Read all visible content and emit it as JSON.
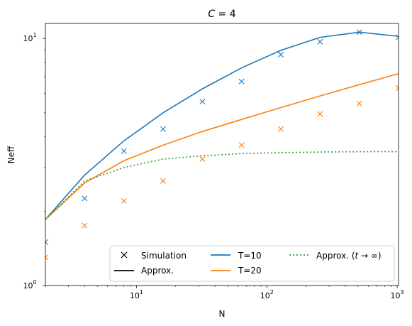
{
  "chart_data": {
    "type": "line",
    "title_main": "C",
    "title_rest": " = 4",
    "xlabel": "N",
    "ylabel": "Neff",
    "xscale": "log",
    "yscale": "log",
    "xlim": [
      2,
      1024
    ],
    "ylim": [
      1,
      11.5
    ],
    "x_ticks": [
      {
        "value": 10,
        "base": "10",
        "exp": "1"
      },
      {
        "value": 100,
        "base": "10",
        "exp": "2"
      },
      {
        "value": 1000,
        "base": "10",
        "exp": "3"
      }
    ],
    "y_ticks": [
      {
        "value": 1,
        "base": "10",
        "exp": "0"
      },
      {
        "value": 10,
        "base": "10",
        "exp": "1"
      }
    ],
    "x": [
      2,
      4,
      8,
      16,
      32,
      64,
      128,
      256,
      512,
      1024
    ],
    "series": [
      {
        "name": "T=10",
        "color": "#1f77b4",
        "kind": "approx",
        "values": [
          1.85,
          2.8,
          3.85,
          5.0,
          6.25,
          7.6,
          8.95,
          10.1,
          10.6,
          10.2
        ]
      },
      {
        "name": "T=20",
        "color": "#ff7f0e",
        "kind": "approx",
        "values": [
          1.85,
          2.6,
          3.2,
          3.7,
          4.2,
          4.7,
          5.25,
          5.85,
          6.5,
          7.2
        ]
      },
      {
        "name": "T=10",
        "color": "#1f77b4",
        "kind": "simulation",
        "values": [
          1.5,
          2.25,
          3.5,
          4.3,
          5.55,
          6.7,
          8.6,
          9.7,
          10.6,
          10.1
        ]
      },
      {
        "name": "T=20",
        "color": "#ff7f0e",
        "kind": "simulation",
        "values": [
          1.3,
          1.75,
          2.2,
          2.65,
          3.25,
          3.7,
          4.3,
          4.95,
          5.45,
          6.3
        ]
      },
      {
        "name": "Approx. (t → ∞)",
        "color": "#2ca02c",
        "kind": "asymptote",
        "values": [
          1.85,
          2.65,
          3.0,
          3.25,
          3.35,
          3.42,
          3.45,
          3.47,
          3.48,
          3.48
        ]
      }
    ],
    "legend": {
      "placement": "lower-right",
      "entries": [
        {
          "label": "Simulation",
          "marker": "x",
          "color": "#000000"
        },
        {
          "label": "T=10",
          "marker": "line",
          "color": "#1f77b4"
        },
        {
          "label": "Approx.",
          "marker": "line",
          "color": "#000000"
        },
        {
          "label": "T=20",
          "marker": "line",
          "color": "#ff7f0e"
        },
        {
          "label_pre": "Approx. (",
          "label_var": "t",
          "label_post": " → ∞)",
          "marker": "dotted",
          "color": "#2ca02c"
        }
      ]
    },
    "grid": false
  }
}
